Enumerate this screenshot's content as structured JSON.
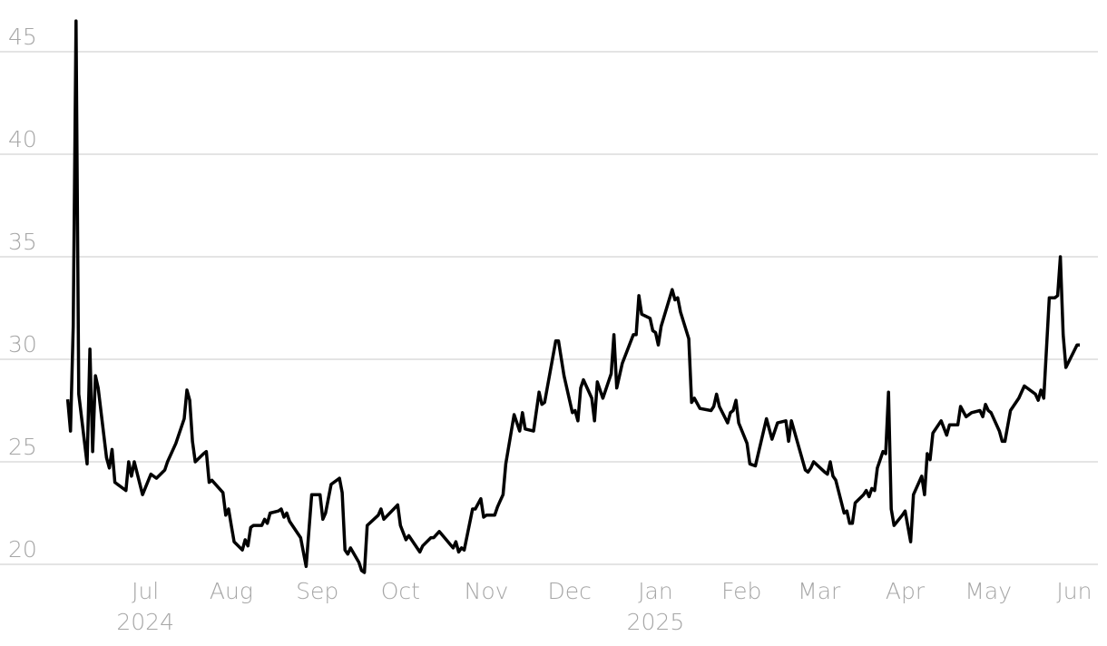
{
  "chart_data": {
    "type": "line",
    "x": [
      2,
      3,
      4,
      5,
      6,
      9,
      10,
      11,
      12,
      13,
      16,
      17,
      18,
      19,
      23,
      24,
      25,
      26,
      29,
      32,
      34,
      37,
      38,
      41,
      44,
      45,
      46,
      47,
      48,
      51,
      52,
      53,
      54,
      58,
      59,
      60,
      61,
      62,
      65,
      66,
      67,
      68,
      69,
      72,
      73,
      74,
      75,
      78,
      79,
      80,
      81,
      82,
      86,
      88,
      90,
      93,
      94,
      95,
      97,
      100,
      101,
      102,
      103,
      104,
      107,
      108,
      109,
      110,
      114,
      115,
      116,
      121,
      122,
      124,
      125,
      129,
      130,
      133,
      134,
      136,
      141,
      142,
      143,
      144,
      145,
      148,
      149,
      151,
      152,
      153,
      156,
      157,
      158,
      159,
      160,
      163,
      165,
      166,
      167,
      170,
      172,
      173,
      174,
      178,
      179,
      181,
      184,
      185,
      186,
      187,
      188,
      191,
      192,
      193,
      195,
      198,
      199,
      200,
      202,
      206,
      207,
      208,
      209,
      212,
      213,
      214,
      215,
      216,
      220,
      221,
      222,
      223,
      226,
      227,
      228,
      230,
      234,
      235,
      236,
      237,
      240,
      241,
      242,
      243,
      244,
      247,
      248,
      250,
      254,
      256,
      258,
      261,
      262,
      263,
      268,
      269,
      270,
      271,
      275,
      276,
      277,
      278,
      279,
      282,
      283,
      284,
      285,
      286,
      289,
      290,
      291,
      292,
      293,
      294,
      296,
      297,
      298,
      299,
      300,
      303,
      304,
      306,
      307,
      310,
      311,
      312,
      313,
      314,
      317,
      319,
      320,
      323,
      324,
      326,
      328,
      331,
      332,
      333,
      334,
      335,
      338,
      339,
      340,
      342,
      345,
      347,
      351,
      352,
      353,
      354,
      356,
      358,
      359,
      360,
      361,
      362,
      366,
      367
    ],
    "series": [
      {
        "color": "#000000",
        "values": [
          28.05,
          26.5,
          31.6,
          46.5,
          28.3,
          24.9,
          30.5,
          25.5,
          29.2,
          28.6,
          25.2,
          24.7,
          25.6,
          24.0,
          23.6,
          25.0,
          24.3,
          25.0,
          23.4,
          24.4,
          24.2,
          24.6,
          25.0,
          25.9,
          27.1,
          28.5,
          28.0,
          26.0,
          25.0,
          25.4,
          25.5,
          24.0,
          24.1,
          23.5,
          22.4,
          22.7,
          21.9,
          21.1,
          20.7,
          21.2,
          20.9,
          21.8,
          21.9,
          21.9,
          22.2,
          22.0,
          22.5,
          22.6,
          22.7,
          22.3,
          22.5,
          22.1,
          21.3,
          19.9,
          23.4,
          23.4,
          22.2,
          22.5,
          23.9,
          24.2,
          23.5,
          20.7,
          20.5,
          20.8,
          20.1,
          19.7,
          19.6,
          21.9,
          22.4,
          22.7,
          22.2,
          22.9,
          21.9,
          21.2,
          21.4,
          20.6,
          20.9,
          21.3,
          21.3,
          21.6,
          20.8,
          21.1,
          20.6,
          20.8,
          20.7,
          22.7,
          22.7,
          23.2,
          22.3,
          22.4,
          22.4,
          22.8,
          23.1,
          23.4,
          24.9,
          27.3,
          26.5,
          27.4,
          26.6,
          26.5,
          28.4,
          27.8,
          27.9,
          30.9,
          30.9,
          29.2,
          27.4,
          27.5,
          27.0,
          28.6,
          29.0,
          28.1,
          27.0,
          28.9,
          28.1,
          29.3,
          31.2,
          28.6,
          29.8,
          31.2,
          31.2,
          33.1,
          32.2,
          32.0,
          31.4,
          31.3,
          30.7,
          31.6,
          33.4,
          32.9,
          33.0,
          32.3,
          31.0,
          27.9,
          28.1,
          27.6,
          27.5,
          27.7,
          28.3,
          27.7,
          26.9,
          27.4,
          27.5,
          28.0,
          26.9,
          25.9,
          24.9,
          24.8,
          27.1,
          26.1,
          26.9,
          27.0,
          26.0,
          27.0,
          24.6,
          24.5,
          24.7,
          25.0,
          24.5,
          24.4,
          25.0,
          24.3,
          24.1,
          22.5,
          22.6,
          22.0,
          22.0,
          23.0,
          23.4,
          23.6,
          23.3,
          23.7,
          23.6,
          24.7,
          25.5,
          25.4,
          28.4,
          22.7,
          21.9,
          22.4,
          22.6,
          21.1,
          23.4,
          24.3,
          23.4,
          25.4,
          25.1,
          26.4,
          27.0,
          26.3,
          26.8,
          26.8,
          27.7,
          27.2,
          27.4,
          27.5,
          27.2,
          27.8,
          27.5,
          27.4,
          26.5,
          26.0,
          26.0,
          27.5,
          28.1,
          28.7,
          28.3,
          28.0,
          28.5,
          28.1,
          33.0,
          33.0,
          33.1,
          35.0,
          31.2,
          29.6,
          30.7,
          30.7
        ]
      }
    ],
    "xlim": [
      0,
      372
    ],
    "xticks": [
      {
        "value": 30,
        "label": "Jul"
      },
      {
        "value": 61,
        "label": "Aug"
      },
      {
        "value": 92,
        "label": "Sep"
      },
      {
        "value": 122,
        "label": "Oct"
      },
      {
        "value": 153,
        "label": "Nov"
      },
      {
        "value": 183,
        "label": "Dec"
      },
      {
        "value": 214,
        "label": "Jan"
      },
      {
        "value": 245,
        "label": "Feb"
      },
      {
        "value": 273,
        "label": "Mar"
      },
      {
        "value": 304,
        "label": "Apr"
      },
      {
        "value": 334,
        "label": "May"
      },
      {
        "value": 365,
        "label": "Jun"
      }
    ],
    "xtick_years": [
      {
        "value": 30,
        "label": "2024"
      },
      {
        "value": 214,
        "label": "2025"
      }
    ],
    "ylim": [
      19.5,
      47
    ],
    "yticks": [
      20,
      25,
      30,
      35,
      40,
      45
    ],
    "grid": true
  }
}
